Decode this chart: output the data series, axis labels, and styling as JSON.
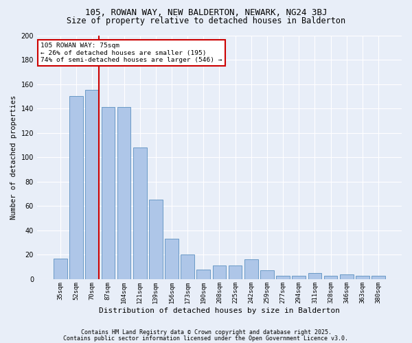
{
  "title1": "105, ROWAN WAY, NEW BALDERTON, NEWARK, NG24 3BJ",
  "title2": "Size of property relative to detached houses in Balderton",
  "xlabel": "Distribution of detached houses by size in Balderton",
  "ylabel": "Number of detached properties",
  "categories": [
    "35sqm",
    "52sqm",
    "70sqm",
    "87sqm",
    "104sqm",
    "121sqm",
    "139sqm",
    "156sqm",
    "173sqm",
    "190sqm",
    "208sqm",
    "225sqm",
    "242sqm",
    "259sqm",
    "277sqm",
    "294sqm",
    "311sqm",
    "328sqm",
    "346sqm",
    "363sqm",
    "380sqm"
  ],
  "values": [
    17,
    150,
    155,
    141,
    141,
    108,
    65,
    33,
    20,
    8,
    11,
    11,
    16,
    7,
    3,
    3,
    5,
    3,
    4,
    3,
    3
  ],
  "bar_color": "#aec6e8",
  "bar_edge_color": "#5a8fc0",
  "vline_x_idx": 2,
  "vline_color": "#cc0000",
  "annotation_text": "105 ROWAN WAY: 75sqm\n← 26% of detached houses are smaller (195)\n74% of semi-detached houses are larger (546) →",
  "annotation_box_color": "#cc0000",
  "annotation_text_color": "#000000",
  "background_color": "#e8eef8",
  "grid_color": "#ffffff",
  "ylim": [
    0,
    200
  ],
  "yticks": [
    0,
    20,
    40,
    60,
    80,
    100,
    120,
    140,
    160,
    180,
    200
  ],
  "footer1": "Contains HM Land Registry data © Crown copyright and database right 2025.",
  "footer2": "Contains public sector information licensed under the Open Government Licence v3.0.",
  "title_fontsize": 9,
  "subtitle_fontsize": 8.5,
  "ylabel_fontsize": 7.5,
  "xlabel_fontsize": 8,
  "tick_fontsize": 6.5,
  "footer_fontsize": 6
}
